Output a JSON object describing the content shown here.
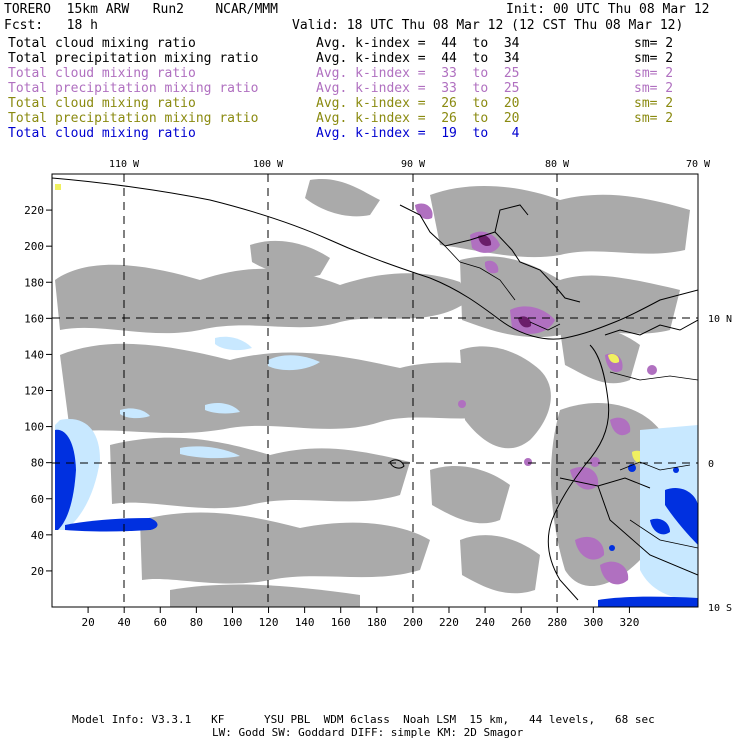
{
  "header": {
    "title": "TORERO  15km ARW   Run2    NCAR/MMM",
    "init": "Init: 00 UTC Thu 08 Mar 12",
    "fcst": "Fcst:   18 h",
    "valid": "Valid: 18 UTC Thu 08 Mar 12 (12 CST Thu 08 Mar 12)"
  },
  "legend": [
    {
      "name": "Total cloud mixing ratio",
      "range": "Avg. k-index =  44  to  34",
      "sm": "sm= 2",
      "color": "#000000"
    },
    {
      "name": "Total precipitation mixing ratio",
      "range": "Avg. k-index =  44  to  34",
      "sm": "sm= 2",
      "color": "#000000"
    },
    {
      "name": "Total cloud mixing ratio",
      "range": "Avg. k-index =  33  to  25",
      "sm": "sm= 2",
      "color": "#b070c0"
    },
    {
      "name": "Total precipitation mixing ratio",
      "range": "Avg. k-index =  33  to  25",
      "sm": "sm= 2",
      "color": "#b070c0"
    },
    {
      "name": "Total cloud mixing ratio",
      "range": "Avg. k-index =  26  to  20",
      "sm": "sm= 2",
      "color": "#8a8a10"
    },
    {
      "name": "Total precipitation mixing ratio",
      "range": "Avg. k-index =  26  to  20",
      "sm": "sm= 2",
      "color": "#8a8a10"
    },
    {
      "name": "Total cloud mixing ratio",
      "range": "Avg. k-index =  19  to   4",
      "sm": "",
      "color": "#0000d0"
    }
  ],
  "axes": {
    "x_ticks": [
      "20",
      "40",
      "60",
      "80",
      "100",
      "120",
      "140",
      "160",
      "180",
      "200",
      "220",
      "240",
      "260",
      "280",
      "300",
      "320"
    ],
    "y_ticks": [
      "20",
      "40",
      "60",
      "80",
      "100",
      "120",
      "140",
      "160",
      "180",
      "200",
      "220"
    ],
    "lon_labels": [
      "110 W",
      "100 W",
      "90 W",
      "80 W",
      "70 W"
    ],
    "lat_labels": [
      "10 N",
      "0",
      "10 S"
    ]
  },
  "footer": {
    "line1": "Model Info: V3.3.1   KF      YSU PBL  WDM 6class  Noah LSM  15 km,   44 levels,   68 sec",
    "line2": "LW: Godd SW: Goddard DIFF: simple KM: 2D Smagor"
  },
  "colors": {
    "cloud_gray": "#aaaaaa",
    "purple": "#b070c0",
    "dark_purple": "#6a1e6a",
    "yellow": "#f0f060",
    "light_blue": "#c8e8ff",
    "blue": "#0030e0"
  }
}
